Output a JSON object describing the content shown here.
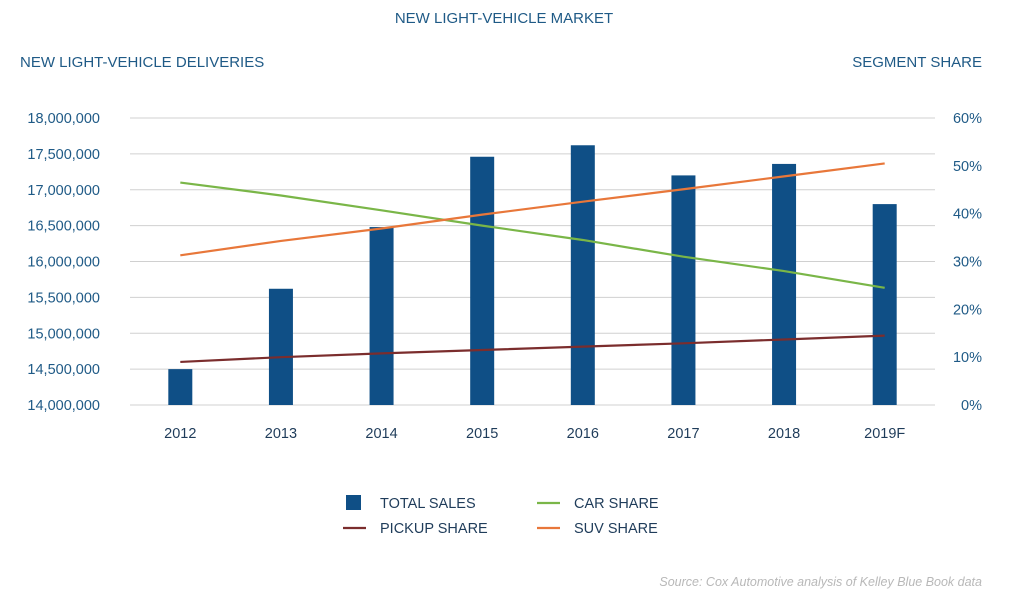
{
  "chart_data": {
    "type": "bar",
    "title": "NEW LIGHT-VEHICLE MARKET",
    "ylabel_left": "NEW LIGHT-VEHICLE DELIVERIES",
    "ylabel_right": "SEGMENT SHARE",
    "categories": [
      "2012",
      "2013",
      "2014",
      "2015",
      "2016",
      "2017",
      "2018",
      "2019F"
    ],
    "ylim_left": [
      14000000,
      18000000
    ],
    "yticks_left": [
      "14,000,000",
      "14,500,000",
      "15,000,000",
      "15,500,000",
      "16,000,000",
      "16,500,000",
      "17,000,000",
      "17,500,000",
      "18,000,000"
    ],
    "ylim_right": [
      0,
      60
    ],
    "yticks_right": [
      "0%",
      "10%",
      "20%",
      "30%",
      "40%",
      "50%",
      "60%"
    ],
    "grid": true,
    "legend_position": "bottom",
    "series": [
      {
        "name": "TOTAL SALES",
        "kind": "bar",
        "axis": "left",
        "color": "#0f4f86",
        "values": [
          14500000,
          15620000,
          16480000,
          17460000,
          17620000,
          17200000,
          17360000,
          16800000
        ]
      },
      {
        "name": "CAR SHARE",
        "kind": "line",
        "axis": "right",
        "color": "#7ab648",
        "values": [
          46.5,
          43.8,
          40.7,
          37.5,
          34.5,
          31.0,
          28.0,
          24.5
        ]
      },
      {
        "name": "PICKUP SHARE",
        "kind": "line",
        "axis": "right",
        "color": "#7b2d2d",
        "values": [
          9.0,
          10.0,
          10.8,
          11.5,
          12.2,
          12.9,
          13.7,
          14.5
        ]
      },
      {
        "name": "SUV SHARE",
        "kind": "line",
        "axis": "right",
        "color": "#e8773a",
        "values": [
          31.3,
          34.3,
          36.9,
          39.8,
          42.5,
          45.1,
          47.8,
          50.5
        ]
      }
    ],
    "legend_order": [
      "TOTAL SALES",
      "CAR SHARE",
      "PICKUP SHARE",
      "SUV SHARE"
    ],
    "source": "Source: Cox Automotive analysis of Kelley Blue Book data"
  }
}
